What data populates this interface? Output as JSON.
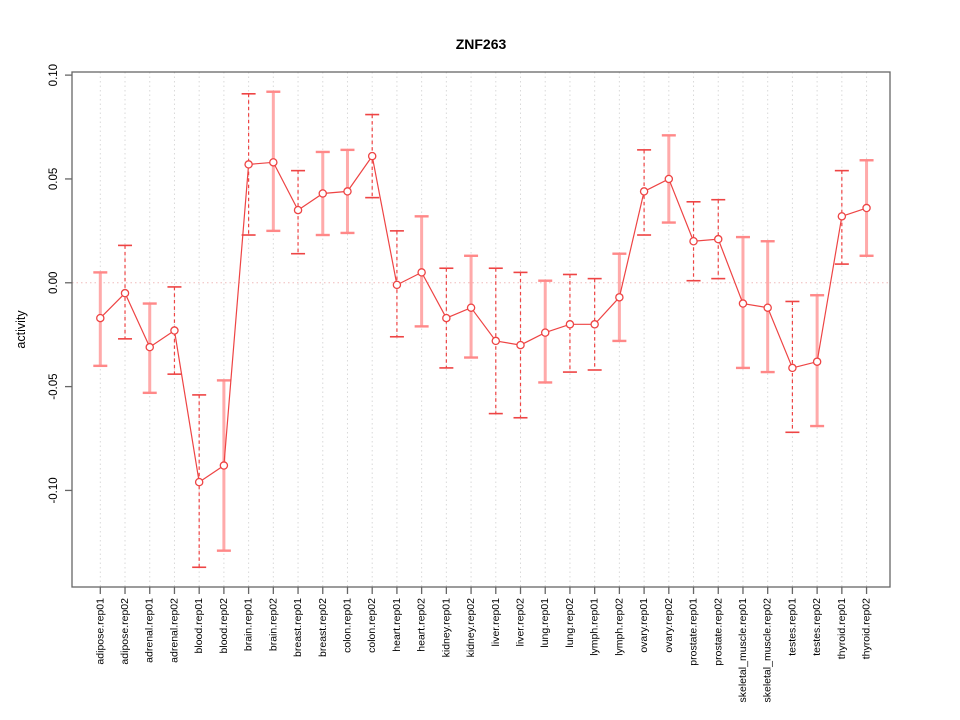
{
  "window": {
    "title": "ZNF263 activity plot"
  },
  "colors": {
    "series_red": "#ee4444",
    "band_pink": "#ffaaaa",
    "grid_gray": "#d9d9d9",
    "zero_line_pink": "#f0bcbc",
    "axis_gray": "#666666",
    "point_fill": "#ffffff"
  },
  "chart_data": {
    "type": "line",
    "title": "ZNF263",
    "xlabel": "",
    "ylabel": "activity",
    "ylim": [
      -0.1465,
      0.1015
    ],
    "ytick_values": [
      0.1,
      0.05,
      0.0,
      -0.05,
      -0.1
    ],
    "ytick_labels": [
      "0.10",
      "0.05",
      "0.00",
      "-0.05",
      "-0.10"
    ],
    "grid": "vertical dotted gridlines at each category; dotted horizontal line at 0",
    "legend": "none",
    "categories": [
      "adipose.rep01",
      "adipose.rep02",
      "adrenal.rep01",
      "adrenal.rep02",
      "blood.rep01",
      "blood.rep02",
      "brain.rep01",
      "brain.rep02",
      "breast.rep01",
      "breast.rep02",
      "colon.rep01",
      "colon.rep02",
      "heart.rep01",
      "heart.rep02",
      "kidney.rep01",
      "kidney.rep02",
      "liver.rep01",
      "liver.rep02",
      "lung.rep01",
      "lung.rep02",
      "lymph.rep01",
      "lymph.rep02",
      "ovary.rep01",
      "ovary.rep02",
      "prostate.rep01",
      "prostate.rep02",
      "skeletal_muscle.rep01",
      "skeletal_muscle.rep02",
      "testes.rep01",
      "testes.rep02",
      "thyroid.rep01",
      "thyroid.rep02"
    ],
    "series": [
      {
        "name": "activity",
        "values": [
          -0.017,
          -0.005,
          -0.031,
          -0.023,
          -0.096,
          -0.088,
          0.057,
          0.058,
          0.035,
          0.043,
          0.044,
          0.061,
          -0.001,
          0.005,
          -0.017,
          -0.012,
          -0.028,
          -0.03,
          -0.024,
          -0.02,
          -0.02,
          -0.007,
          0.044,
          0.05,
          0.02,
          0.021,
          -0.01,
          -0.012,
          -0.041,
          -0.038,
          0.032,
          0.036
        ],
        "err_high": [
          0.005,
          0.018,
          -0.01,
          -0.002,
          -0.054,
          -0.047,
          0.091,
          0.092,
          0.054,
          0.063,
          0.064,
          0.081,
          0.025,
          0.032,
          0.007,
          0.013,
          0.007,
          0.005,
          0.001,
          0.004,
          0.002,
          0.014,
          0.064,
          0.071,
          0.039,
          0.04,
          0.022,
          0.02,
          -0.009,
          -0.006,
          0.054,
          0.059
        ],
        "err_low": [
          -0.04,
          -0.027,
          -0.053,
          -0.044,
          -0.137,
          -0.129,
          0.023,
          0.025,
          0.014,
          0.023,
          0.024,
          0.041,
          -0.026,
          -0.021,
          -0.041,
          -0.036,
          -0.063,
          -0.065,
          -0.048,
          -0.043,
          -0.042,
          -0.028,
          0.023,
          0.029,
          0.001,
          0.002,
          -0.041,
          -0.043,
          -0.072,
          -0.069,
          0.009,
          0.013
        ],
        "bar_styles": [
          "solid",
          "dashed",
          "solid",
          "dashed",
          "dashed",
          "solid",
          "dashed",
          "solid",
          "dashed",
          "solid",
          "solid",
          "dashed",
          "dashed",
          "solid",
          "dashed",
          "solid",
          "dashed",
          "dashed",
          "solid",
          "dashed",
          "dashed",
          "solid",
          "dashed",
          "solid",
          "dashed",
          "dashed",
          "solid",
          "solid",
          "dashed",
          "solid",
          "dashed",
          "solid"
        ]
      }
    ]
  }
}
